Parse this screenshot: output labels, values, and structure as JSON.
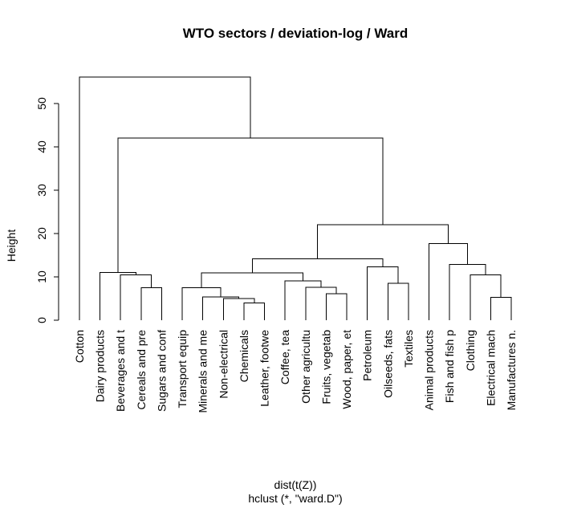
{
  "chart_data": {
    "type": "dendrogram",
    "title": "WTO sectors / deviation-log / Ward",
    "ylabel": "Height",
    "xlabel": "dist(t(Z))",
    "sublabel": "hclust (*, \"ward.D\")",
    "ylim": [
      0,
      56
    ],
    "yticks": [
      0,
      10,
      20,
      30,
      40,
      50
    ],
    "leaves": [
      "Cotton",
      "Dairy products",
      "Beverages and t",
      "Cereals and pre",
      "Sugars and conf",
      "Transport equip",
      "Minerals and me",
      "Non-electrical",
      "Chemicals",
      "Leather, footwe",
      "Coffee, tea",
      "Other agricultu",
      "Fruits, vegetab",
      "Wood, paper, et",
      "Petroleum",
      "Oilseeds, fats",
      "Textiles",
      "Animal products",
      "Fish and fish p",
      "Clothing",
      "Electrical mach",
      "Manufactures n."
    ],
    "merges": [
      {
        "left": "Leather, footwe",
        "right": "Chemicals",
        "height": 4.0
      },
      {
        "left": "Fruits, vegetab",
        "right": "Wood, paper, et",
        "height": 6.1
      },
      {
        "left": "Electrical mach",
        "right": "Manufactures n.",
        "height": 5.3
      },
      {
        "left": "Non-electrical",
        "right": "m1",
        "height": 5.0
      },
      {
        "left": "Minerals and me",
        "right": "m4",
        "height": 5.4
      },
      {
        "left": "Transport equip",
        "right": "m5",
        "height": 7.5
      },
      {
        "left": "Cereals and pre",
        "right": "Sugars and conf",
        "height": 7.5
      },
      {
        "left": "Other agricultu",
        "right": "m2",
        "height": 7.6
      },
      {
        "left": "Oilseeds, fats",
        "right": "Textiles",
        "height": 8.5
      },
      {
        "left": "Coffee, tea",
        "right": "m8",
        "height": 9.1
      },
      {
        "left": "Beverages and t",
        "right": "m7",
        "height": 10.5
      },
      {
        "left": "Clothing",
        "right": "m3",
        "height": 10.5
      },
      {
        "left": "m6",
        "right": "m10",
        "height": 10.9
      },
      {
        "left": "Dairy products",
        "right": "m11",
        "height": 11.0
      },
      {
        "left": "Petroleum",
        "right": "m9",
        "height": 12.3
      },
      {
        "left": "Fish and fish p",
        "right": "m12",
        "height": 12.9
      },
      {
        "left": "m13",
        "right": "m15",
        "height": 14.2
      },
      {
        "left": "Animal products",
        "right": "m16",
        "height": 17.7
      },
      {
        "left": "m17",
        "right": "m18",
        "height": 22.0
      },
      {
        "left": "m14",
        "right": "m19",
        "height": 42.0
      },
      {
        "left": "Cotton",
        "right": "m20",
        "height": 56.1
      }
    ]
  }
}
